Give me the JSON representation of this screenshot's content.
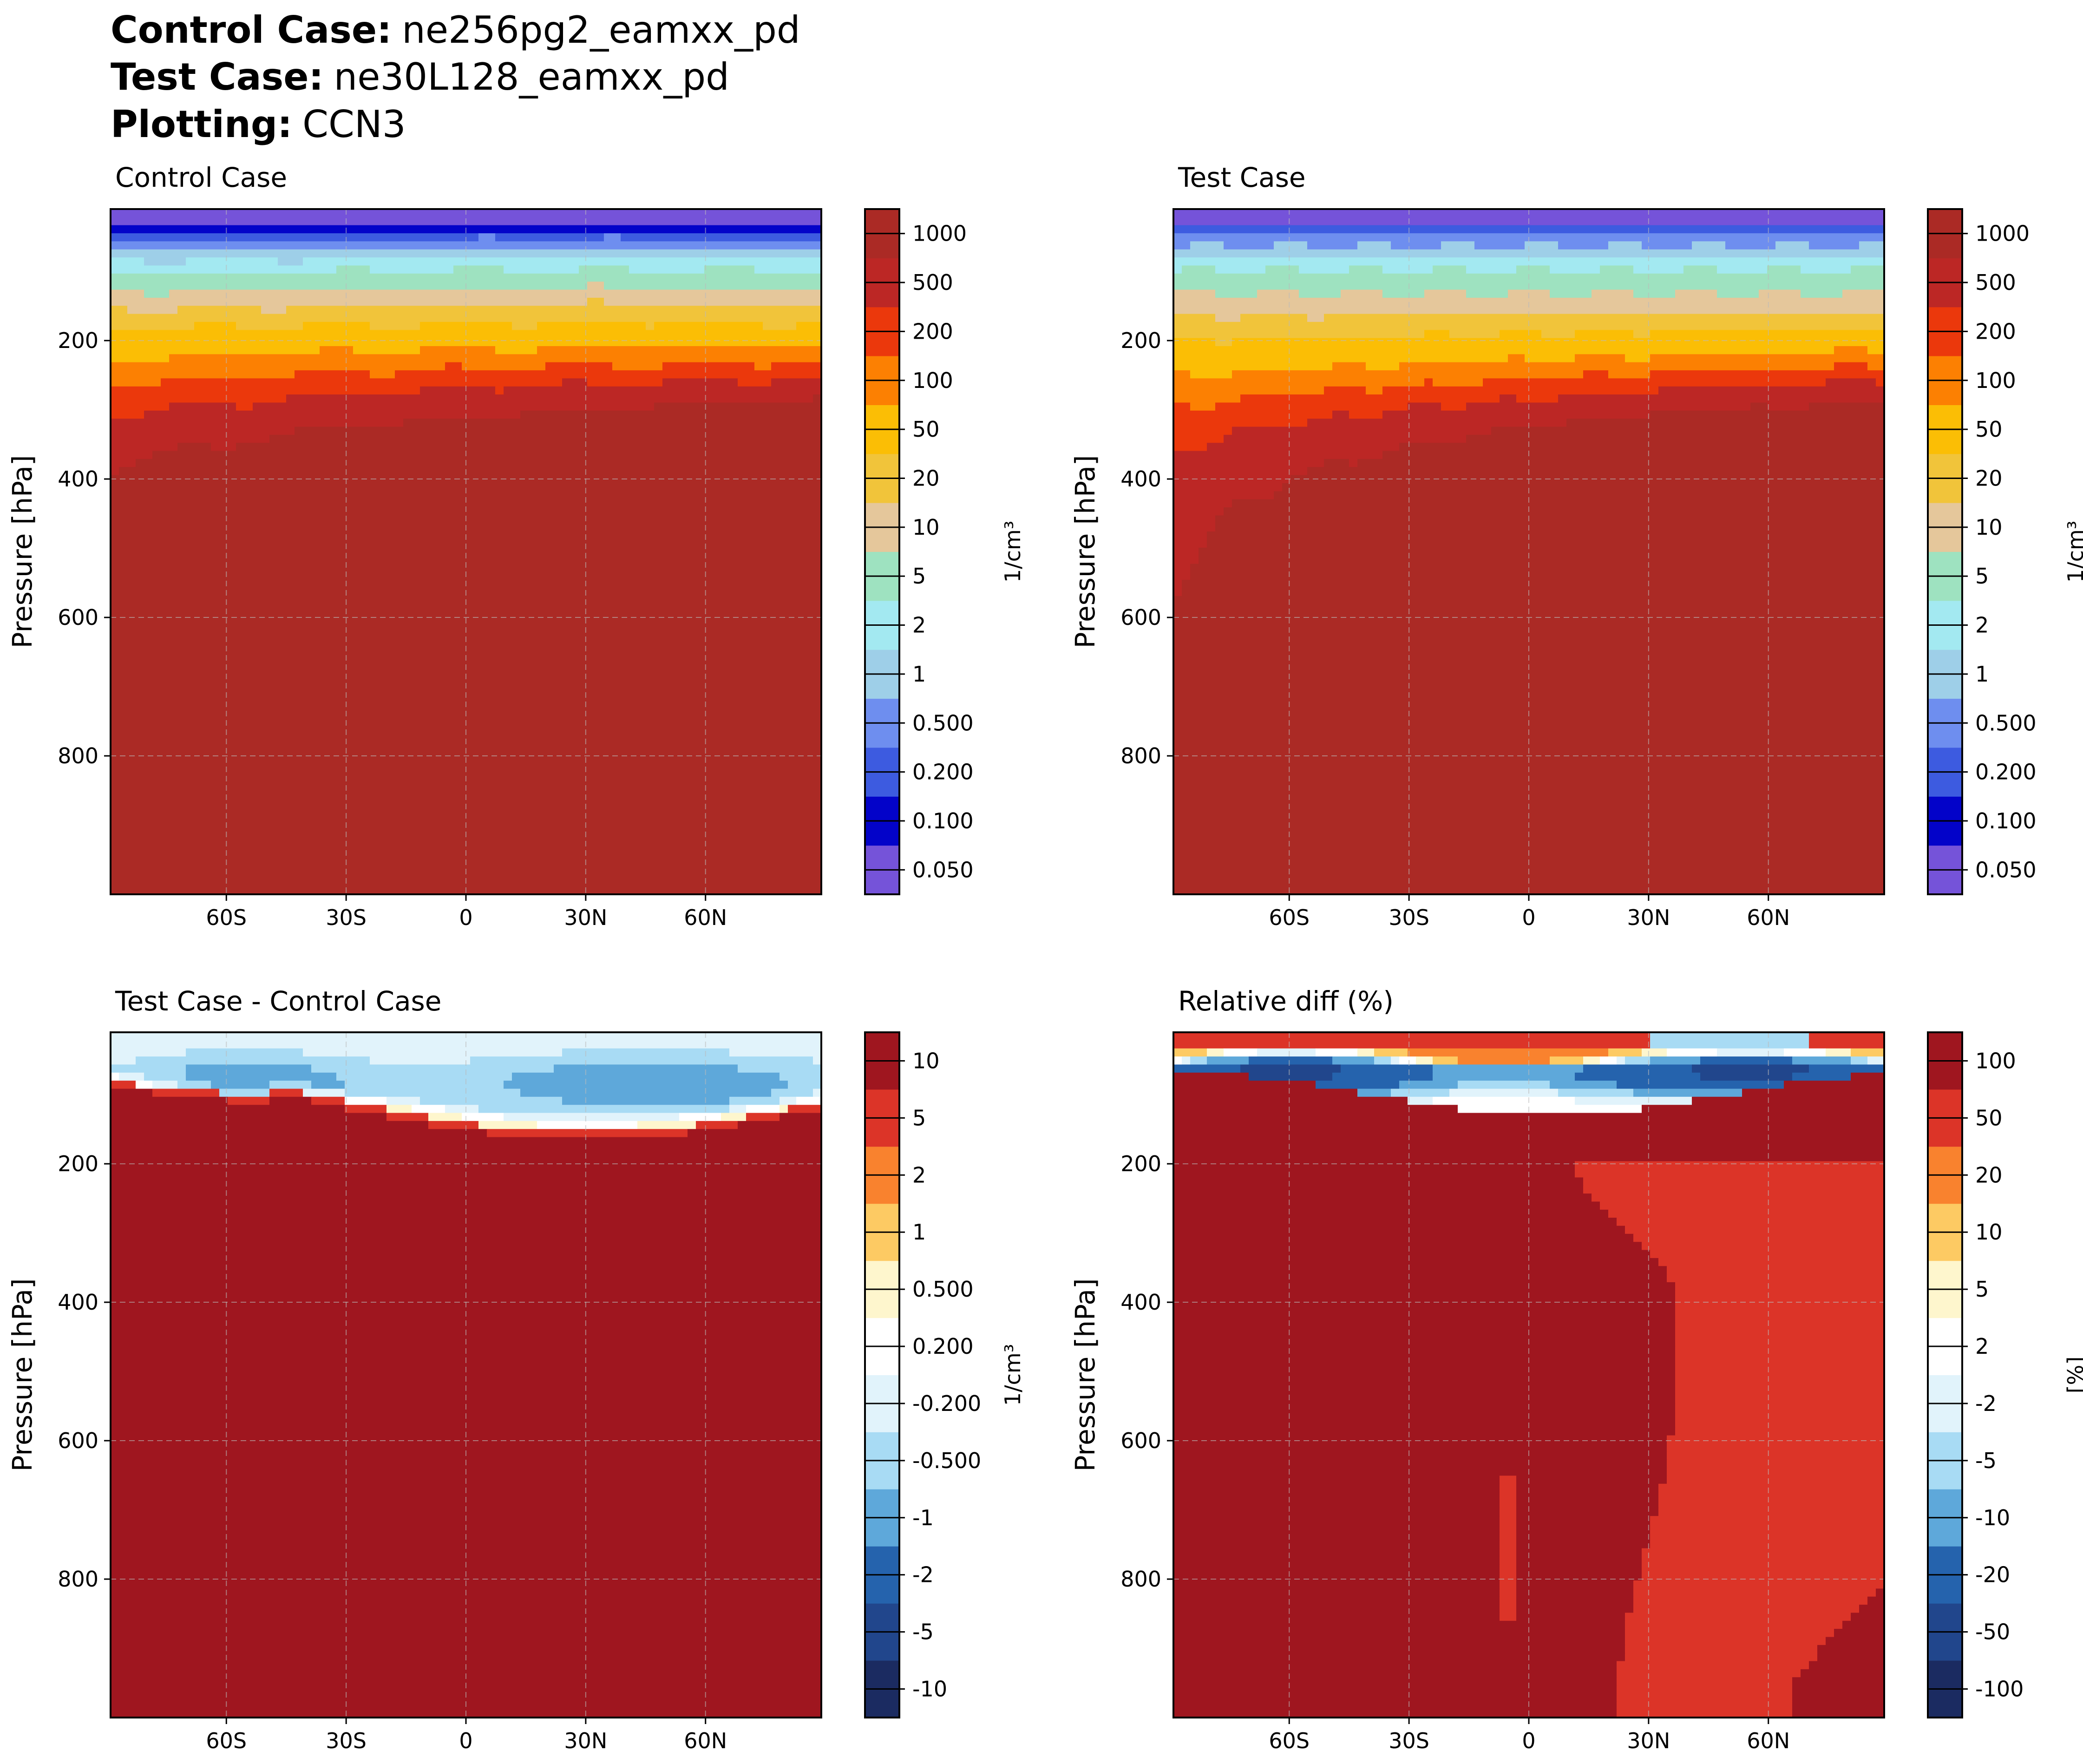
{
  "header": {
    "control_label": "Control Case",
    "control_value": "ne256pg2_eamxx_pd",
    "test_label": "Test Case",
    "test_value": "ne30L128_eamxx_pd",
    "plotting_label": "Plotting",
    "plotting_value": "CCN3",
    "separator": ":"
  },
  "chart_data": [
    {
      "type": "contour",
      "title": "Control Case",
      "xlabel": "",
      "ylabel": "Pressure [hPa]",
      "x_ticks": [
        "60S",
        "30S",
        "0",
        "30N",
        "60N"
      ],
      "x_tick_values": [
        -60,
        -30,
        0,
        30,
        60
      ],
      "xlim": [
        -89,
        89
      ],
      "ylim": [
        1000,
        10
      ],
      "y_ticks": [
        "200",
        "400",
        "600",
        "800"
      ],
      "y_tick_values": [
        200,
        400,
        600,
        800
      ],
      "grid": true,
      "colorbar_label": "1/cm³",
      "levels": [
        "0.050",
        "0.100",
        "0.200",
        "0.500",
        "1",
        "2",
        "5",
        "10",
        "20",
        "50",
        "100",
        "200",
        "500",
        "1000"
      ],
      "level_colors": [
        "#7553d9",
        "#0303c9",
        "#3d5be0",
        "#6e8eef",
        "#9ecfe8",
        "#a3e9f1",
        "#9ee2c0",
        "#e5c79b",
        "#f1c43a",
        "#fbbe05",
        "#fc8002",
        "#eb380c",
        "#bc2725",
        "#ab2a25"
      ],
      "field": "control"
    },
    {
      "type": "contour",
      "title": "Test Case",
      "xlabel": "",
      "ylabel": "Pressure [hPa]",
      "x_ticks": [
        "60S",
        "30S",
        "0",
        "30N",
        "60N"
      ],
      "x_tick_values": [
        -60,
        -30,
        0,
        30,
        60
      ],
      "xlim": [
        -89,
        89
      ],
      "ylim": [
        1000,
        10
      ],
      "y_ticks": [
        "200",
        "400",
        "600",
        "800"
      ],
      "y_tick_values": [
        200,
        400,
        600,
        800
      ],
      "grid": true,
      "colorbar_label": "1/cm³",
      "levels": [
        "0.050",
        "0.100",
        "0.200",
        "0.500",
        "1",
        "2",
        "5",
        "10",
        "20",
        "50",
        "100",
        "200",
        "500",
        "1000"
      ],
      "level_colors": [
        "#7553d9",
        "#0303c9",
        "#3d5be0",
        "#6e8eef",
        "#9ecfe8",
        "#a3e9f1",
        "#9ee2c0",
        "#e5c79b",
        "#f1c43a",
        "#fbbe05",
        "#fc8002",
        "#eb380c",
        "#bc2725",
        "#ab2a25"
      ],
      "field": "test"
    },
    {
      "type": "contour",
      "title": "Test Case - Control Case",
      "xlabel": "",
      "ylabel": "Pressure [hPa]",
      "x_ticks": [
        "60S",
        "30S",
        "0",
        "30N",
        "60N"
      ],
      "x_tick_values": [
        -60,
        -30,
        0,
        30,
        60
      ],
      "xlim": [
        -89,
        89
      ],
      "ylim": [
        1000,
        10
      ],
      "y_ticks": [
        "200",
        "400",
        "600",
        "800"
      ],
      "y_tick_values": [
        200,
        400,
        600,
        800
      ],
      "grid": true,
      "colorbar_label": "1/cm³",
      "levels": [
        "-10",
        "-5",
        "-2",
        "-1",
        "-0.500",
        "-0.200",
        "0.200",
        "0.500",
        "1",
        "2",
        "5",
        "10"
      ],
      "level_colors": [
        "#1b2b61",
        "#21468c",
        "#2563ad",
        "#5ea8da",
        "#a8dbf4",
        "#e1f3fb",
        "#ffffff",
        "#fef6cd",
        "#fdca63",
        "#f9822e",
        "#dc3428",
        "#9f161f"
      ],
      "field": "diff"
    },
    {
      "type": "contour",
      "title": "Relative diff (%)",
      "xlabel": "",
      "ylabel": "Pressure [hPa]",
      "x_ticks": [
        "60S",
        "30S",
        "0",
        "30N",
        "60N"
      ],
      "x_tick_values": [
        -60,
        -30,
        0,
        30,
        60
      ],
      "xlim": [
        -89,
        89
      ],
      "ylim": [
        1000,
        10
      ],
      "y_ticks": [
        "200",
        "400",
        "600",
        "800"
      ],
      "y_tick_values": [
        200,
        400,
        600,
        800
      ],
      "grid": true,
      "colorbar_label": "[%]",
      "levels": [
        "-100",
        "-50",
        "-20",
        "-10",
        "-5",
        "-2",
        "2",
        "5",
        "10",
        "20",
        "50",
        "100"
      ],
      "level_colors": [
        "#1b2b61",
        "#21468c",
        "#2563ad",
        "#5ea8da",
        "#a8dbf4",
        "#e1f3fb",
        "#ffffff",
        "#fef6cd",
        "#fdca63",
        "#f9822e",
        "#dc3428",
        "#9f161f"
      ],
      "field": "rel"
    }
  ]
}
